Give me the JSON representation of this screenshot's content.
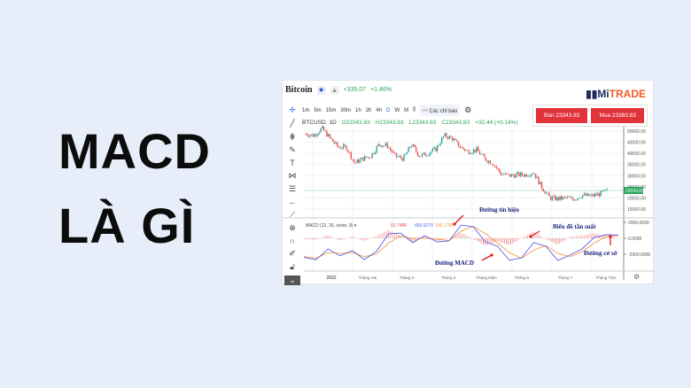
{
  "headline": {
    "line1": "MACD",
    "line2": "LÀ GÌ"
  },
  "header": {
    "title": "Bitcoin",
    "change": "+335.07",
    "change_pct": "+1.46%",
    "logo_prefix": "Mi",
    "logo_suffix": "TRADE"
  },
  "toolbar": {
    "intervals": [
      "1m",
      "5m",
      "15m",
      "30m",
      "1h",
      "2h",
      "4h",
      "D",
      "W",
      "M"
    ],
    "active": "D",
    "indicators_label": "Các chỉ báo"
  },
  "symbol_bar": {
    "symbol": "BTCUSD, 1D",
    "open": "O23343.83",
    "high": "H23343.83",
    "low": "L23343.83",
    "close": "C23343.83",
    "change": "+32.44 (+0.14%)"
  },
  "trade": {
    "sell": "Bán 23343.83",
    "buy": "Mua 23383.83"
  },
  "left_tools": [
    "crosshair-icon",
    "trend-line-icon",
    "fib-icon",
    "brush-icon",
    "text-icon",
    "pattern-icon",
    "measure-icon",
    "back-arrow-icon",
    "ruler-icon",
    "zoom-icon",
    "magnet-icon",
    "lock-draw-icon",
    "lock-icon",
    "chevron-down-icon"
  ],
  "colors": {
    "up": "#26a69a",
    "down": "#ef5350",
    "macd": "#5b5ff0",
    "signal": "#f39c4a",
    "hist": "#f28b8b",
    "annot": "#1a237e",
    "arrow": "#e01919",
    "accent": "#2962ff"
  },
  "chart_data": [
    {
      "type": "candlestick",
      "price_axis": [
        "50000.00",
        "45000.00",
        "40000.00",
        "35000.00",
        "30000.00",
        "25000.00",
        "20000.00",
        "15000.00"
      ],
      "ylim": [
        15000,
        50000
      ],
      "last_price_label": "23343.83",
      "closes": [
        48800,
        48000,
        51200,
        46800,
        42800,
        42800,
        35600,
        37600,
        38800,
        44000,
        43600,
        38800,
        37600,
        44000,
        38800,
        40000,
        42000,
        48000,
        46800,
        42800,
        40800,
        41600,
        37600,
        35600,
        30800,
        30000,
        30400,
        30400,
        31600,
        24800,
        20000,
        19600,
        20000,
        19600,
        21200,
        20800,
        21600,
        23200
      ],
      "x_ticks": [
        "2022",
        "Tháng Hai",
        "Tháng 3",
        "Tháng 4",
        "Tháng Năm",
        "Tháng 6",
        "Tháng 7",
        "Tháng Tám"
      ]
    },
    {
      "type": "line",
      "title": "MACD (12, 26, close, 9)",
      "values_legend": [
        "63.7486",
        "459.9270",
        "396.1785"
      ],
      "axis": [
        "2000.0000",
        "0.0000",
        "-2000.0000"
      ],
      "ylim": [
        -3000,
        2000
      ],
      "macd": [
        -2400,
        -2700,
        -1330,
        -2200,
        -1550,
        -2660,
        -1660,
        550,
        660,
        -550,
        330,
        -440,
        -330,
        1660,
        1440,
        -440,
        -1000,
        -2770,
        -2440,
        -550,
        -1000,
        -2770,
        -2100,
        -1330,
        110,
        440,
        400
      ],
      "signal": [
        -2300,
        -2500,
        -1800,
        -1900,
        -1800,
        -2300,
        -2000,
        -600,
        300,
        0,
        0,
        -100,
        -300,
        900,
        1500,
        600,
        -600,
        -1800,
        -2500,
        -1500,
        -900,
        -1900,
        -2300,
        -1700,
        -600,
        200,
        350
      ]
    }
  ],
  "annotations": {
    "signal_line": "Đường tín hiệu",
    "histogram": "Biểu đồ tần suất",
    "macd_line": "Đường MACD",
    "baseline": "Đường cơ sở"
  }
}
